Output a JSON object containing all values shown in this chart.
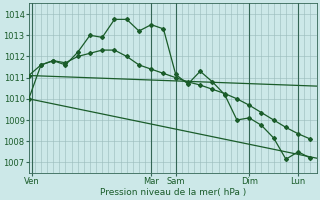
{
  "background_color": "#cce8e8",
  "grid_color": "#99bbbb",
  "line_color": "#1a5c2a",
  "xlabel": "Pression niveau de la mer( hPa )",
  "ylim": [
    1006.5,
    1014.5
  ],
  "yticks": [
    1007,
    1008,
    1009,
    1010,
    1011,
    1012,
    1013,
    1014
  ],
  "xlim": [
    0,
    47
  ],
  "x_day_positions": [
    0.5,
    20,
    24,
    36,
    44
  ],
  "x_day_labels": [
    "Ven",
    "Mar",
    "Sam",
    "Dim",
    "Lun"
  ],
  "vline_positions": [
    0.5,
    20,
    24,
    36,
    44
  ],
  "series1_x": [
    0,
    2,
    4,
    6,
    8,
    10,
    12,
    14,
    16,
    18,
    20,
    22,
    24,
    26,
    28,
    30,
    32,
    34,
    36,
    38,
    40,
    42,
    44,
    46
  ],
  "series1_y": [
    1010.0,
    1011.6,
    1011.8,
    1011.6,
    1012.2,
    1013.0,
    1012.9,
    1013.75,
    1013.75,
    1013.2,
    1013.5,
    1013.3,
    1011.15,
    1010.7,
    1011.3,
    1010.8,
    1010.2,
    1009.0,
    1009.1,
    1008.75,
    1008.15,
    1007.15,
    1007.5,
    1007.2
  ],
  "series2_x": [
    0,
    2,
    4,
    6,
    8,
    10,
    12,
    14,
    16,
    18,
    20,
    22,
    24,
    26,
    28,
    30,
    32,
    34,
    36,
    38,
    40,
    42,
    44,
    46
  ],
  "series2_y": [
    1011.1,
    1011.6,
    1011.8,
    1011.7,
    1012.0,
    1012.15,
    1012.3,
    1012.3,
    1012.0,
    1011.6,
    1011.4,
    1011.2,
    1011.0,
    1010.8,
    1010.65,
    1010.45,
    1010.25,
    1010.0,
    1009.7,
    1009.35,
    1009.0,
    1008.65,
    1008.35,
    1008.1
  ],
  "series3_x": [
    0,
    47
  ],
  "series3_y": [
    1011.1,
    1010.6
  ],
  "series4_x": [
    0,
    47
  ],
  "series4_y": [
    1010.0,
    1007.2
  ],
  "n_vgrid": 48
}
